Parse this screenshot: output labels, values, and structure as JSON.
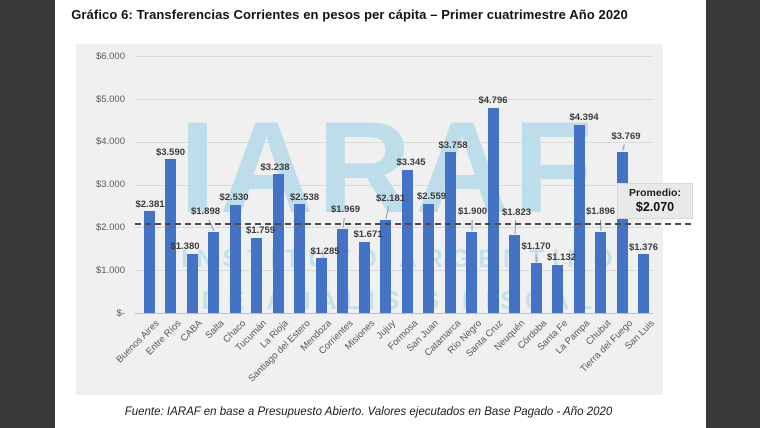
{
  "page": {
    "title": "Gráfico 6: Transferencias Corrientes en pesos per cápita – Primer cuatrimestre Año 2020",
    "footer": "Fuente: IARAF en base a Presupuesto Abierto. Valores ejecutados en Base Pagado - Año 2020"
  },
  "watermark": {
    "logo": "IARAF",
    "line1": "INSTITUTO ARGENTINO",
    "line2": "DE ANALISIS FISCAL"
  },
  "colors": {
    "bar": "#4472C4",
    "chart_background": "#f0f0f0",
    "page_background": "#ffffff",
    "frame_background": "#38383a",
    "gridline": "#d9d9d9",
    "axis_line": "#bfbfbf",
    "average_line": "#4a4a4a",
    "watermark": "#bcdde9",
    "data_label": "#3b3b3b",
    "tick_label": "#595959",
    "leader_line": "#7f9bc8"
  },
  "chart_data": {
    "type": "bar",
    "title": "Gráfico 6: Transferencias Corrientes en pesos per cápita – Primer cuatrimestre Año 2020",
    "xlabel": "",
    "ylabel": "",
    "ylim": [
      0,
      6000
    ],
    "grid": true,
    "legend": false,
    "categories": [
      "Buenos Aires",
      "Entre Ríos",
      "CABA",
      "Salta",
      "Chaco",
      "Tucumán",
      "La Rioja",
      "Santiago del Estero",
      "Mendoza",
      "Corrientes",
      "Misiones",
      "Jujuy",
      "Formosa",
      "San Juan",
      "Catamarca",
      "Río Negro",
      "Santa Cruz",
      "Neuquén",
      "Córdoba",
      "Santa Fe",
      "La Pampa",
      "Chubut",
      "Tierra del Fuego",
      "San Luis"
    ],
    "values": [
      2381,
      3590,
      1380,
      1898,
      2530,
      1759,
      3238,
      2538,
      1285,
      1969,
      1671,
      2181,
      3345,
      2559,
      3758,
      1900,
      4796,
      1823,
      1170,
      1132,
      4394,
      1896,
      3769,
      1376
    ],
    "bar_labels": [
      "$2.381",
      "$3.590",
      "$1.380",
      "$1.898",
      "$2.530",
      "$1.759",
      "$3.238",
      "$2.538",
      "$1.285",
      "$1.969",
      "$1.671",
      "$2.181",
      "$3.345",
      "$2.559",
      "$3.758",
      "$1.900",
      "$4.796",
      "$1.823",
      "$1.170",
      "$1.132",
      "$4.394",
      "$1.896",
      "$3.769",
      "$1.376"
    ],
    "y_ticks": [
      {
        "value": 6000,
        "label": "$6.000"
      },
      {
        "value": 5000,
        "label": "$5.000"
      },
      {
        "value": 4000,
        "label": "$4.000"
      },
      {
        "value": 3000,
        "label": "$3.000"
      },
      {
        "value": 2000,
        "label": "$2.000"
      },
      {
        "value": 1000,
        "label": "$1.000"
      },
      {
        "value": 0,
        "label": "$-"
      }
    ],
    "average": {
      "label": "Promedio:",
      "value_label": "$2.070",
      "value": 2070
    },
    "label_layout": [
      {
        "dx": 1,
        "lift": 0,
        "leader": false
      },
      {
        "dx": 0,
        "lift": 0,
        "leader": false
      },
      {
        "dx": -7,
        "lift": 0,
        "leader": false
      },
      {
        "dx": -8,
        "lift": 13,
        "leader": true
      },
      {
        "dx": -1,
        "lift": 0,
        "leader": false
      },
      {
        "dx": 4,
        "lift": 0,
        "leader": false
      },
      {
        "dx": -3,
        "lift": 0,
        "leader": false
      },
      {
        "dx": 5,
        "lift": 0,
        "leader": false
      },
      {
        "dx": 4,
        "lift": 0,
        "leader": false
      },
      {
        "dx": 3,
        "lift": 12,
        "leader": true
      },
      {
        "dx": 4,
        "lift": 0,
        "leader": false
      },
      {
        "dx": 5,
        "lift": 14,
        "leader": true
      },
      {
        "dx": 4,
        "lift": 0,
        "leader": false
      },
      {
        "dx": 3,
        "lift": 0,
        "leader": false
      },
      {
        "dx": 3,
        "lift": 0,
        "leader": false
      },
      {
        "dx": 1,
        "lift": 13,
        "leader": true
      },
      {
        "dx": 0,
        "lift": 0,
        "leader": false
      },
      {
        "dx": 2,
        "lift": 16,
        "leader": true
      },
      {
        "dx": 0,
        "lift": 9,
        "leader": true
      },
      {
        "dx": 4,
        "lift": 0,
        "leader": false
      },
      {
        "dx": 5,
        "lift": 0,
        "leader": false
      },
      {
        "dx": 0,
        "lift": 13,
        "leader": true
      },
      {
        "dx": 4,
        "lift": 8,
        "leader": true
      },
      {
        "dx": 0,
        "lift": 0,
        "leader": false
      }
    ]
  }
}
